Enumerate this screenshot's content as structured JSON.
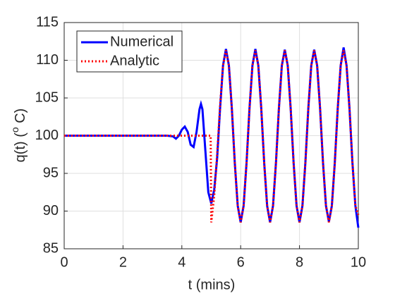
{
  "chart_data": {
    "type": "line",
    "xlabel": "t (mins)",
    "ylabel": {
      "prefix": "q(t) (",
      "sup": "o",
      "suffix": " C)"
    },
    "xlim": [
      0,
      10
    ],
    "xticks": [
      0,
      2,
      4,
      6,
      8,
      10
    ],
    "ylim": [
      85,
      115
    ],
    "yticks": [
      85,
      90,
      95,
      100,
      105,
      110,
      115
    ],
    "grid": true,
    "legend": "upper-left",
    "series": [
      {
        "name": "Numerical",
        "color": "#0000ff",
        "style": "solid",
        "x": [
          0,
          3.5,
          3.7,
          3.8,
          3.9,
          4.0,
          4.1,
          4.2,
          4.3,
          4.4,
          4.5,
          4.6,
          4.65,
          4.7,
          4.8,
          4.9,
          5.0,
          5.1,
          5.2,
          5.3,
          5.4,
          5.5,
          5.6,
          5.7,
          5.8,
          5.9,
          6.0,
          6.1,
          6.2,
          6.3,
          6.4,
          6.5,
          6.6,
          6.7,
          6.8,
          6.9,
          7.0,
          7.1,
          7.2,
          7.3,
          7.4,
          7.5,
          7.6,
          7.7,
          7.8,
          7.9,
          8.0,
          8.1,
          8.2,
          8.3,
          8.4,
          8.5,
          8.6,
          8.7,
          8.8,
          8.9,
          9.0,
          9.1,
          9.2,
          9.3,
          9.4,
          9.5,
          9.6,
          9.7,
          9.8,
          9.9,
          10.0
        ],
        "values": [
          100,
          100,
          99.9,
          99.6,
          100,
          100.8,
          101.2,
          100.5,
          98.8,
          98.5,
          100.5,
          103.5,
          104.2,
          103.5,
          98,
          92.5,
          91.0,
          92.8,
          97.0,
          103.6,
          109.3,
          111.5,
          109.3,
          103.6,
          96.4,
          90.7,
          88.5,
          90.7,
          96.4,
          103.6,
          109.3,
          111.5,
          109.3,
          103.6,
          96.4,
          90.7,
          88.5,
          90.7,
          96.4,
          103.6,
          109.3,
          111.4,
          109.3,
          103.6,
          96.4,
          90.7,
          88.5,
          90.7,
          96.4,
          103.6,
          109.3,
          111.4,
          109.3,
          103.6,
          96.4,
          90.7,
          88.6,
          90.7,
          96.4,
          103.6,
          109.3,
          111.7,
          109.3,
          103.6,
          96.4,
          90.7,
          87.8
        ]
      },
      {
        "name": "Analytic",
        "color": "#ff0000",
        "style": "dotted",
        "x": [
          0,
          4.98,
          5.0,
          5.1,
          5.2,
          5.3,
          5.4,
          5.5,
          5.6,
          5.7,
          5.8,
          5.9,
          6.0,
          6.1,
          6.2,
          6.3,
          6.4,
          6.5,
          6.6,
          6.7,
          6.8,
          6.9,
          7.0,
          7.1,
          7.2,
          7.3,
          7.4,
          7.5,
          7.6,
          7.7,
          7.8,
          7.9,
          8.0,
          8.1,
          8.2,
          8.3,
          8.4,
          8.5,
          8.6,
          8.7,
          8.8,
          8.9,
          9.0,
          9.1,
          9.2,
          9.3,
          9.4,
          9.5,
          9.6,
          9.7,
          9.8,
          9.9,
          10.0
        ],
        "values": [
          100,
          100,
          88.5,
          92,
          97.5,
          104,
          109.3,
          111.3,
          109.3,
          103.6,
          96.4,
          90.7,
          88.5,
          90.7,
          96.4,
          103.6,
          109.3,
          111.3,
          109.3,
          103.6,
          96.4,
          90.7,
          88.5,
          90.7,
          96.4,
          103.6,
          109.3,
          111.3,
          109.3,
          103.6,
          96.4,
          90.7,
          88.5,
          90.7,
          96.4,
          103.6,
          109.3,
          111.3,
          109.3,
          103.6,
          96.4,
          90.7,
          88.5,
          90.7,
          96.4,
          103.6,
          109.3,
          111.3,
          109.3,
          103.6,
          96.4,
          90.7,
          89.5
        ]
      }
    ]
  }
}
